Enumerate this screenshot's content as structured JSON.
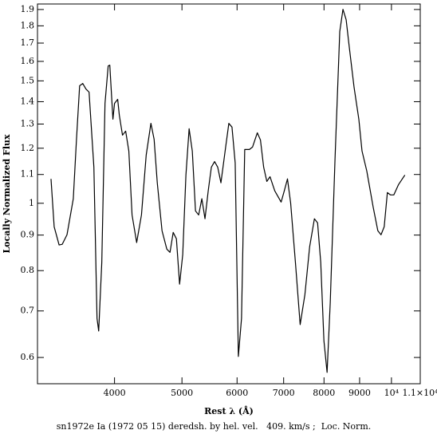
{
  "chart_data": {
    "type": "line",
    "caption": "sn1972e Ia (1972 05 15) deredsh. by hel. vel.   409. km/s ;  Loc. Norm.",
    "x_label": "Rest λ (Å)",
    "y_label": "Locally Normalized Flux",
    "xscale": "log",
    "yscale": "log",
    "xlim": [
      3100,
      11000
    ],
    "ylim": [
      0.55,
      1.935
    ],
    "xticks": [
      4000,
      5000,
      6000,
      7000,
      8000,
      9000,
      {
        "value": 10000,
        "label": "10⁴"
      },
      {
        "value": 11000,
        "label": "1.1×10⁴"
      }
    ],
    "yticks": [
      0.6,
      0.7,
      0.8,
      0.9,
      1,
      1.1,
      1.2,
      1.3,
      1.4,
      1.5,
      1.6,
      1.7,
      1.8,
      1.9
    ],
    "color": "#000000",
    "x": [
      3242,
      3276,
      3330,
      3365,
      3418,
      3490,
      3527,
      3564,
      3601,
      3639,
      3677,
      3736,
      3775,
      3796,
      3835,
      3876,
      3917,
      3938,
      3979,
      4000,
      4042,
      4064,
      4107,
      4150,
      4194,
      4239,
      4304,
      4373,
      4442,
      4512,
      4560,
      4608,
      4681,
      4756,
      4806,
      4857,
      4909,
      4961,
      5013,
      5066,
      5120,
      5174,
      5229,
      5284,
      5340,
      5396,
      5454,
      5511,
      5570,
      5628,
      5688,
      5778,
      5839,
      5900,
      5963,
      6026,
      6089,
      6154,
      6250,
      6316,
      6416,
      6483,
      6552,
      6621,
      6691,
      6797,
      6942,
      7015,
      7089,
      7164,
      7278,
      7393,
      7510,
      7629,
      7750,
      7832,
      7914,
      7998,
      8082,
      8167,
      8297,
      8428,
      8518,
      8608,
      8699,
      8837,
      8977,
      9072,
      9216,
      9412,
      9560,
      9661,
      9763,
      9866,
      9970,
      10078,
      10238,
      10454
    ],
    "values": [
      1.084,
      0.925,
      0.871,
      0.873,
      0.901,
      1.015,
      1.236,
      1.476,
      1.487,
      1.46,
      1.445,
      1.127,
      0.683,
      0.655,
      0.822,
      1.392,
      1.576,
      1.58,
      1.321,
      1.392,
      1.411,
      1.339,
      1.253,
      1.27,
      1.189,
      0.962,
      0.878,
      0.962,
      1.173,
      1.303,
      1.236,
      1.07,
      0.913,
      0.859,
      0.85,
      0.908,
      0.889,
      0.765,
      0.844,
      1.098,
      1.28,
      1.189,
      0.975,
      0.962,
      1.015,
      0.95,
      1.042,
      1.127,
      1.148,
      1.127,
      1.07,
      1.205,
      1.303,
      1.287,
      1.143,
      0.602,
      0.683,
      1.195,
      1.195,
      1.205,
      1.263,
      1.233,
      1.127,
      1.075,
      1.092,
      1.042,
      1.004,
      1.042,
      1.084,
      1.001,
      0.822,
      0.669,
      0.739,
      0.866,
      0.95,
      0.937,
      0.822,
      0.634,
      0.571,
      0.72,
      1.158,
      1.766,
      1.901,
      1.837,
      1.675,
      1.468,
      1.321,
      1.189,
      1.113,
      0.988,
      0.913,
      0.901,
      0.925,
      1.036,
      1.028,
      1.028,
      1.064,
      1.098
    ]
  }
}
